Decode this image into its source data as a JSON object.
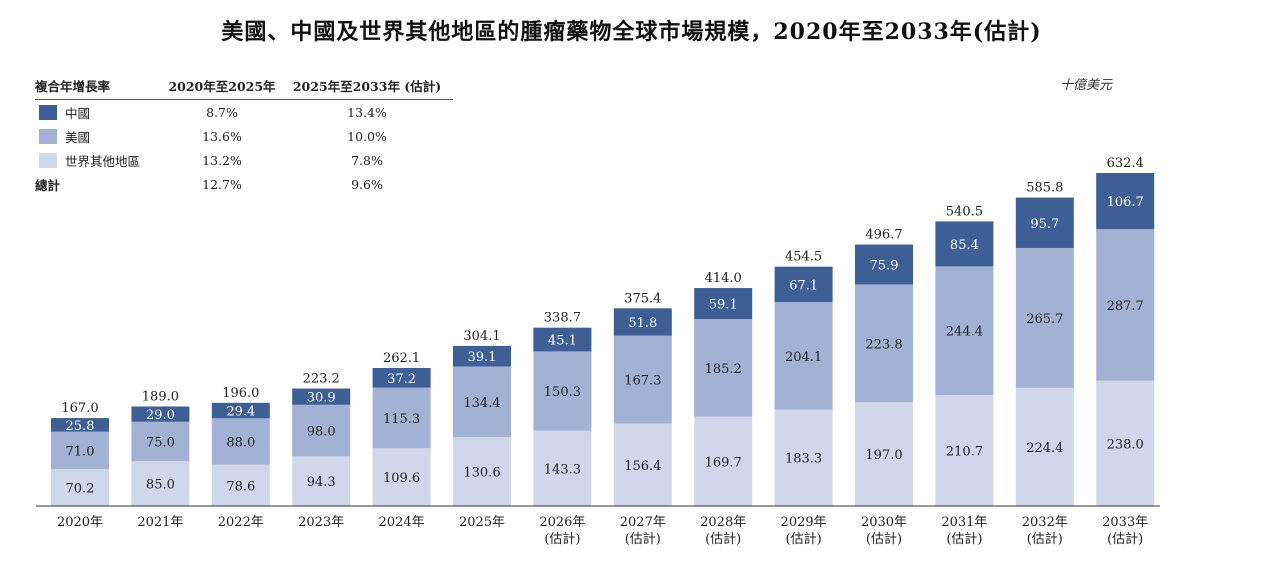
{
  "title": "美國、中國及世界其他地區的腫瘤藥物全球市場規模，2020年至2033年(估計)",
  "unit": "十億美元",
  "cagr_table": {
    "header": [
      "複合年增長率",
      "2020年至2025年",
      "2025年至2033年 (估計)"
    ],
    "rows": [
      {
        "label": "中國",
        "v1": "8.7%",
        "v2": "13.4%",
        "color": "#3d5f95"
      },
      {
        "label": "美國",
        "v1": "13.6%",
        "v2": "10.0%",
        "color": "#a3b1d4"
      },
      {
        "label": "世界其他地區",
        "v1": "13.2%",
        "v2": "7.8%",
        "color": "#d0d7ea"
      }
    ],
    "total": {
      "label": "總計",
      "v1": "12.7%",
      "v2": "9.6%"
    }
  },
  "chart_data": {
    "type": "bar",
    "stacked": true,
    "categories": [
      "2020年",
      "2021年",
      "2022年",
      "2023年",
      "2024年",
      "2025年",
      "2026年\n(估計)",
      "2027年\n(估計)",
      "2028年\n(估計)",
      "2029年\n(估計)",
      "2030年\n(估計)",
      "2031年\n(估計)",
      "2032年\n(估計)",
      "2033年\n(估計)"
    ],
    "series": [
      {
        "name": "世界其他地區",
        "color": "#d0d7ea",
        "values": [
          70.2,
          85.0,
          78.6,
          94.3,
          109.6,
          130.6,
          143.3,
          156.4,
          169.7,
          183.3,
          197.0,
          210.7,
          224.4,
          238.0
        ],
        "labels": [
          "70.2",
          "85.0",
          "78.6",
          "94.3",
          "109.6",
          "130.6",
          "143.3",
          "156.4",
          "169.7",
          "183.3",
          "197.0",
          "210.7",
          "224.4",
          "238.0"
        ]
      },
      {
        "name": "美國",
        "color": "#a3b1d4",
        "values": [
          71.0,
          75.0,
          88.0,
          98.0,
          115.3,
          134.4,
          150.3,
          167.3,
          185.2,
          204.1,
          223.8,
          244.4,
          265.7,
          287.7
        ],
        "labels": [
          "71.0",
          "75.0",
          "88.0",
          "98.0",
          "115.3",
          "134.4",
          "150.3",
          "167.3",
          "185.2",
          "204.1",
          "223.8",
          "244.4",
          "265.7",
          "287.7"
        ]
      },
      {
        "name": "中國",
        "color": "#3d5f95",
        "values": [
          25.8,
          29.0,
          29.4,
          30.9,
          37.2,
          39.1,
          45.1,
          51.8,
          59.1,
          67.1,
          75.9,
          85.4,
          95.7,
          106.7
        ],
        "labels": [
          "25.8",
          "29.0",
          "29.4",
          "30.9",
          "37.2",
          "39.1",
          "45.1",
          "51.8",
          "59.1",
          "67.1",
          "75.9",
          "85.4",
          "95.7",
          "106.7"
        ]
      }
    ],
    "totals": [
      "167.0",
      "189.0",
      "196.0",
      "223.2",
      "262.1",
      "304.1",
      "338.7",
      "375.4",
      "414.0",
      "454.5",
      "496.7",
      "540.5",
      "585.8",
      "632.4"
    ],
    "ylim": [
      0,
      640
    ],
    "grid": false
  }
}
